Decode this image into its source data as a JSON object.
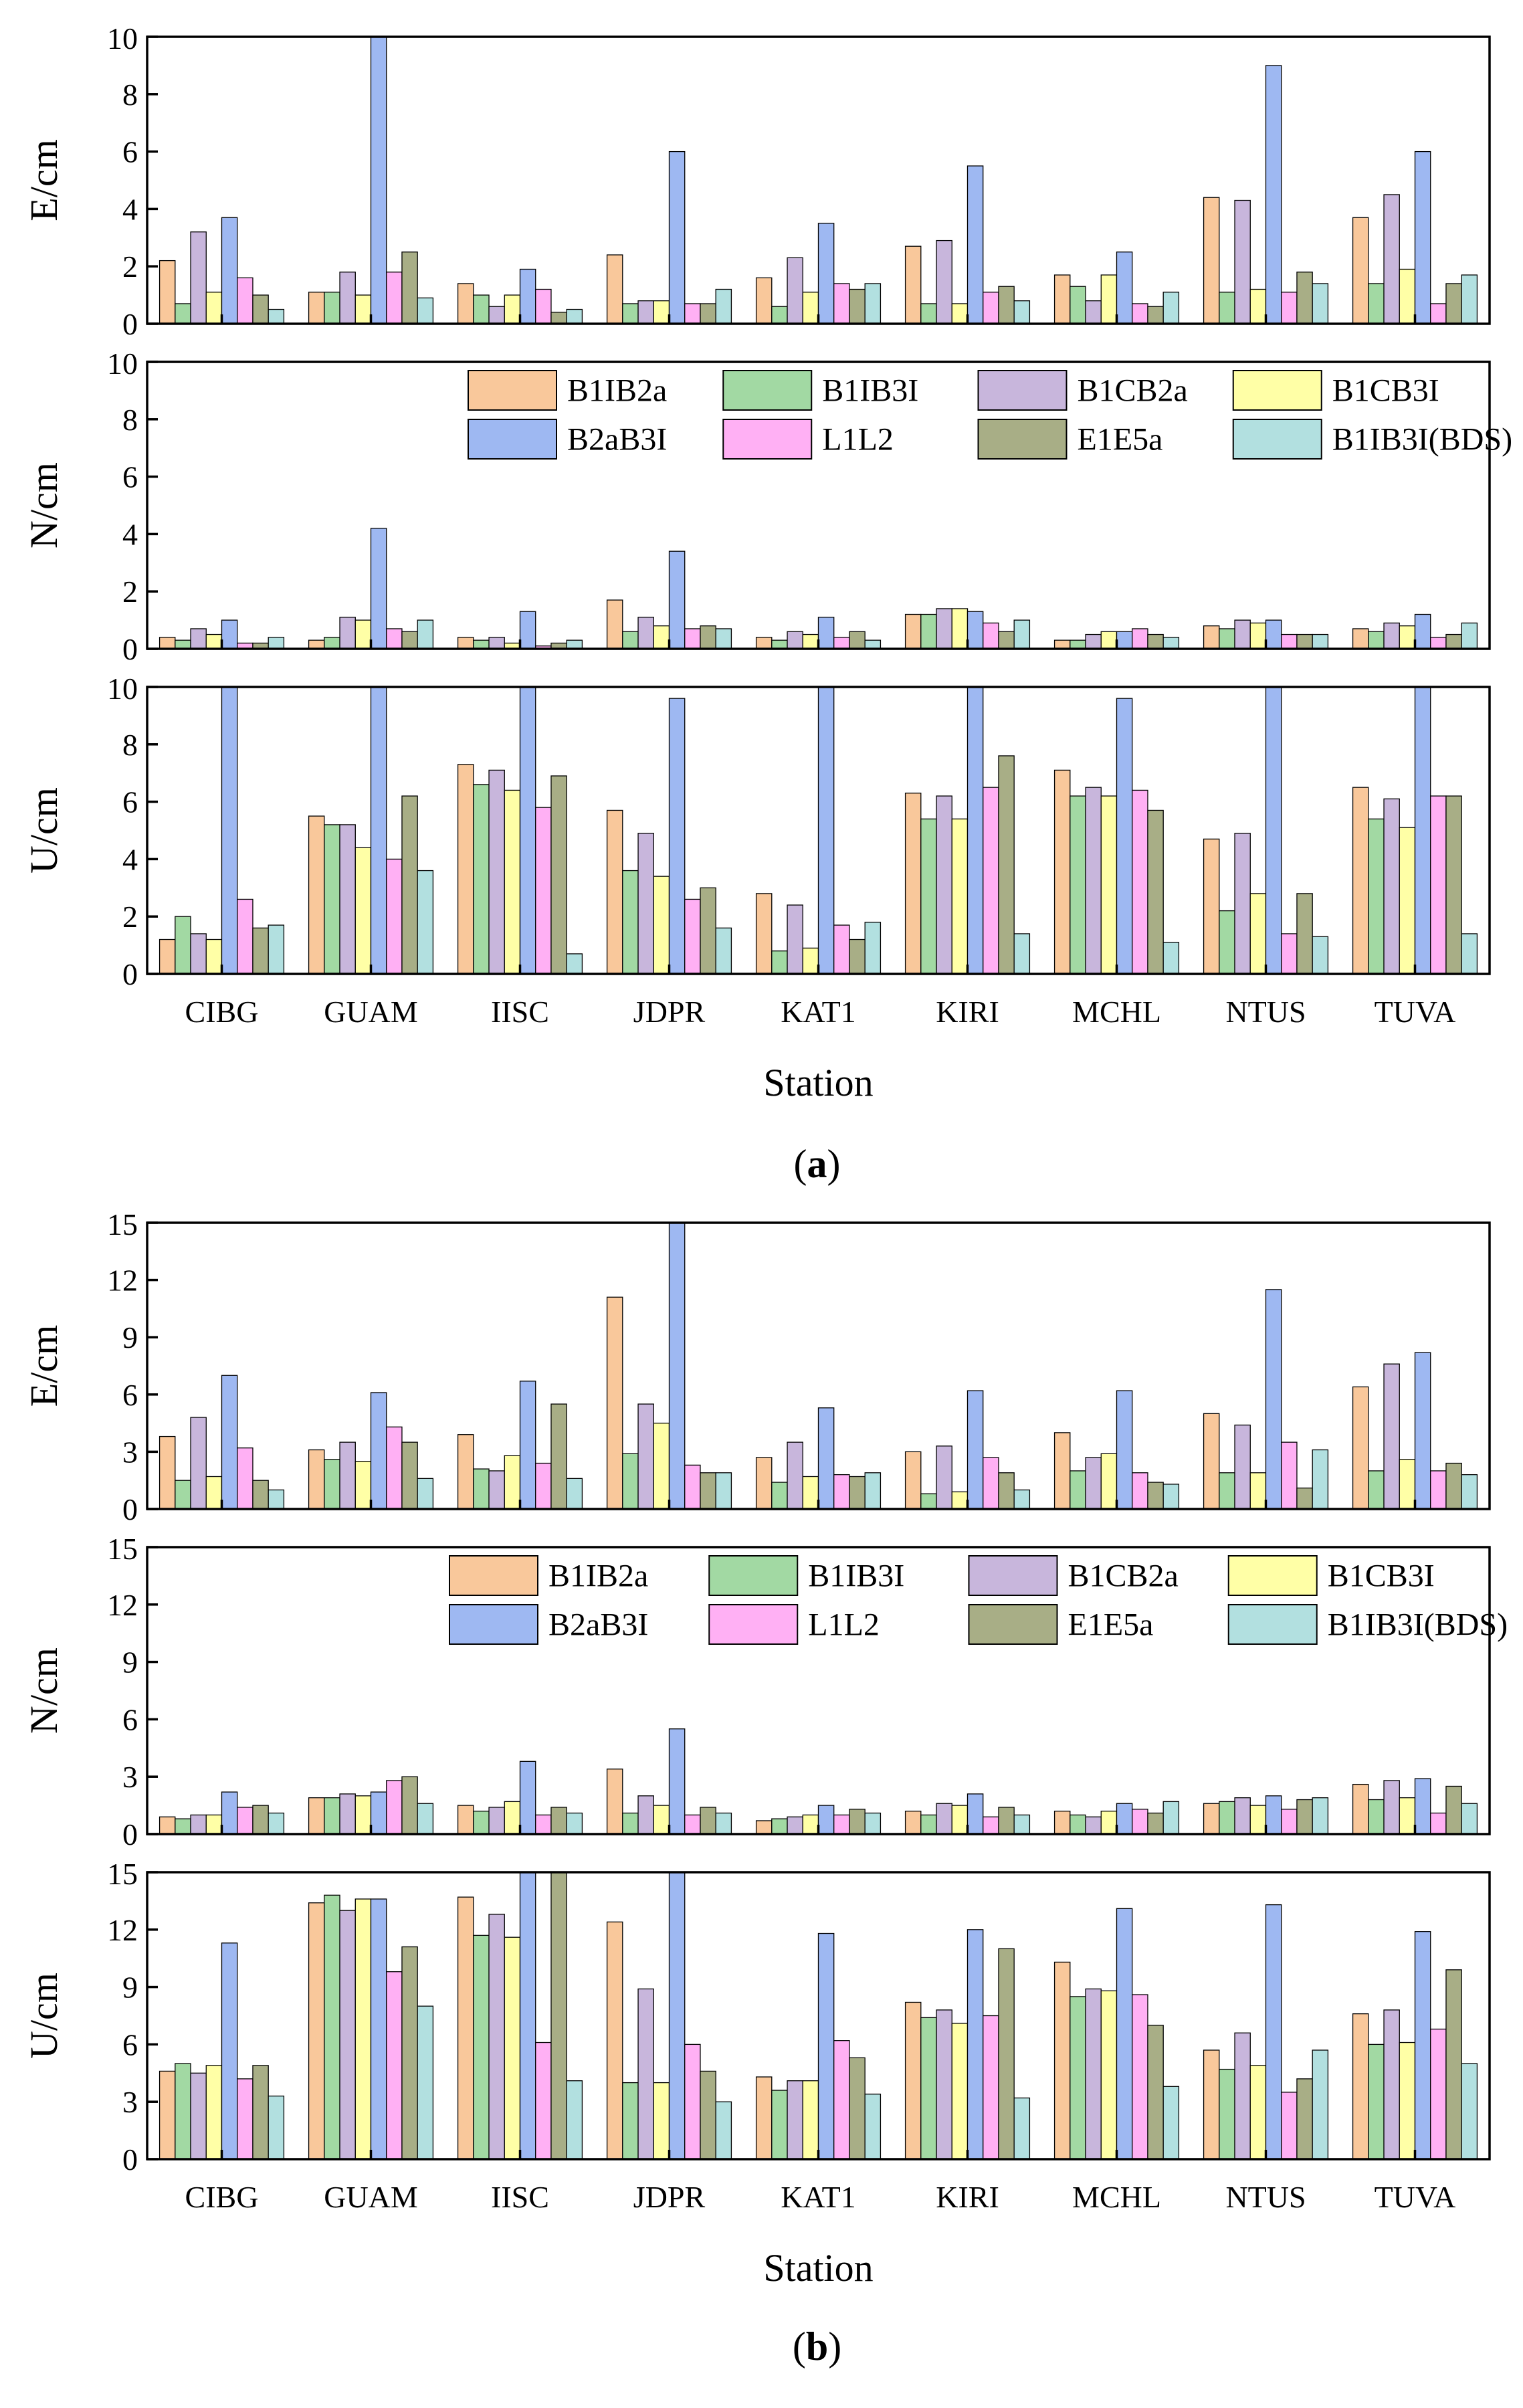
{
  "x_label": "Station",
  "legend_entries": [
    "B1IB2a",
    "B1IB3I",
    "B1CB2a",
    "B1CB3I",
    "B2aB3I",
    "L1L2",
    "E1E5a",
    "B1IB3I(BDS)"
  ],
  "series_colors": [
    "#F9C89B",
    "#A2D9A3",
    "#C8B6DC",
    "#FFFFA6",
    "#9EB8F2",
    "#FFB0F4",
    "#A8AE86",
    "#B2E0E0"
  ],
  "chart_data": [
    {
      "type": "bar",
      "title": "(a)",
      "caption": "a",
      "categories": [
        "CIBG",
        "GUAM",
        "IISC",
        "JDPR",
        "KAT1",
        "KIRI",
        "MCHL",
        "NTUS",
        "TUVA"
      ],
      "xlabel": "Station",
      "panels": [
        {
          "ylabel": "E/cm",
          "ylim": [
            0,
            10
          ],
          "yticks": [
            0,
            2,
            4,
            6,
            8,
            10
          ],
          "series": [
            {
              "name": "B1IB2a",
              "values": [
                2.2,
                1.1,
                1.4,
                2.4,
                1.6,
                2.7,
                1.7,
                4.4,
                3.7
              ]
            },
            {
              "name": "B1IB3I",
              "values": [
                0.7,
                1.1,
                1.0,
                0.7,
                0.6,
                0.7,
                1.3,
                1.1,
                1.4
              ]
            },
            {
              "name": "B1CB2a",
              "values": [
                3.2,
                1.8,
                0.6,
                0.8,
                2.3,
                2.9,
                0.8,
                4.3,
                4.5
              ]
            },
            {
              "name": "B1CB3I",
              "values": [
                1.1,
                1.0,
                1.0,
                0.8,
                1.1,
                0.7,
                1.7,
                1.2,
                1.9
              ]
            },
            {
              "name": "B2aB3I",
              "values": [
                3.7,
                10.0,
                1.9,
                6.0,
                3.5,
                5.5,
                2.5,
                9.0,
                6.0
              ]
            },
            {
              "name": "L1L2",
              "values": [
                1.6,
                1.8,
                1.2,
                0.7,
                1.4,
                1.1,
                0.7,
                1.1,
                0.7
              ]
            },
            {
              "name": "E1E5a",
              "values": [
                1.0,
                2.5,
                0.4,
                0.7,
                1.2,
                1.3,
                0.6,
                1.8,
                1.4
              ]
            },
            {
              "name": "B1IB3I(BDS)",
              "values": [
                0.5,
                0.9,
                0.5,
                1.2,
                1.4,
                0.8,
                1.1,
                1.4,
                1.7
              ]
            }
          ]
        },
        {
          "ylabel": "N/cm",
          "ylim": [
            0,
            10
          ],
          "yticks": [
            0,
            2,
            4,
            6,
            8,
            10
          ],
          "series": [
            {
              "name": "B1IB2a",
              "values": [
                0.4,
                0.3,
                0.4,
                1.7,
                0.4,
                1.2,
                0.3,
                0.8,
                0.7
              ]
            },
            {
              "name": "B1IB3I",
              "values": [
                0.3,
                0.4,
                0.3,
                0.6,
                0.3,
                1.2,
                0.3,
                0.7,
                0.6
              ]
            },
            {
              "name": "B1CB2a",
              "values": [
                0.7,
                1.1,
                0.4,
                1.1,
                0.6,
                1.4,
                0.5,
                1.0,
                0.9
              ]
            },
            {
              "name": "B1CB3I",
              "values": [
                0.5,
                1.0,
                0.2,
                0.8,
                0.5,
                1.4,
                0.6,
                0.9,
                0.8
              ]
            },
            {
              "name": "B2aB3I",
              "values": [
                1.0,
                4.2,
                1.3,
                3.4,
                1.1,
                1.3,
                0.6,
                1.0,
                1.2
              ]
            },
            {
              "name": "L1L2",
              "values": [
                0.2,
                0.7,
                0.1,
                0.7,
                0.4,
                0.9,
                0.7,
                0.5,
                0.4
              ]
            },
            {
              "name": "E1E5a",
              "values": [
                0.2,
                0.6,
                0.2,
                0.8,
                0.6,
                0.6,
                0.5,
                0.5,
                0.5
              ]
            },
            {
              "name": "B1IB3I(BDS)",
              "values": [
                0.4,
                1.0,
                0.3,
                0.7,
                0.3,
                1.0,
                0.4,
                0.5,
                0.9
              ]
            }
          ]
        },
        {
          "ylabel": "U/cm",
          "ylim": [
            0,
            10
          ],
          "yticks": [
            0,
            2,
            4,
            6,
            8,
            10
          ],
          "series": [
            {
              "name": "B1IB2a",
              "values": [
                1.2,
                5.5,
                7.3,
                5.7,
                2.8,
                6.3,
                7.1,
                4.7,
                6.5
              ]
            },
            {
              "name": "B1IB3I",
              "values": [
                2.0,
                5.2,
                6.6,
                3.6,
                0.8,
                5.4,
                6.2,
                2.2,
                5.4
              ]
            },
            {
              "name": "B1CB2a",
              "values": [
                1.4,
                5.2,
                7.1,
                4.9,
                2.4,
                6.2,
                6.5,
                4.9,
                6.1
              ]
            },
            {
              "name": "B1CB3I",
              "values": [
                1.2,
                4.4,
                6.4,
                3.4,
                0.9,
                5.4,
                6.2,
                2.8,
                5.1
              ]
            },
            {
              "name": "B2aB3I",
              "values": [
                10.0,
                10.0,
                10.0,
                9.6,
                10.0,
                10.0,
                9.6,
                10.0,
                10.0
              ]
            },
            {
              "name": "L1L2",
              "values": [
                2.6,
                4.0,
                5.8,
                2.6,
                1.7,
                6.5,
                6.4,
                1.4,
                6.2
              ]
            },
            {
              "name": "E1E5a",
              "values": [
                1.6,
                6.2,
                6.9,
                3.0,
                1.2,
                7.6,
                5.7,
                2.8,
                6.2
              ]
            },
            {
              "name": "B1IB3I(BDS)",
              "values": [
                1.7,
                3.6,
                0.7,
                1.6,
                1.8,
                1.4,
                1.1,
                1.3,
                1.4
              ]
            }
          ]
        }
      ]
    },
    {
      "type": "bar",
      "title": "(b)",
      "caption": "b",
      "categories": [
        "CIBG",
        "GUAM",
        "IISC",
        "JDPR",
        "KAT1",
        "KIRI",
        "MCHL",
        "NTUS",
        "TUVA"
      ],
      "xlabel": "Station",
      "panels": [
        {
          "ylabel": "E/cm",
          "ylim": [
            0,
            15
          ],
          "yticks": [
            0,
            3,
            6,
            9,
            12,
            15
          ],
          "series": [
            {
              "name": "B1IB2a",
              "values": [
                3.8,
                3.1,
                3.9,
                11.1,
                2.7,
                3.0,
                4.0,
                5.0,
                6.4
              ]
            },
            {
              "name": "B1IB3I",
              "values": [
                1.5,
                2.6,
                2.1,
                2.9,
                1.4,
                0.8,
                2.0,
                1.9,
                2.0
              ]
            },
            {
              "name": "B1CB2a",
              "values": [
                4.8,
                3.5,
                2.0,
                5.5,
                3.5,
                3.3,
                2.7,
                4.4,
                7.6
              ]
            },
            {
              "name": "B1CB3I",
              "values": [
                1.7,
                2.5,
                2.8,
                4.5,
                1.7,
                0.9,
                2.9,
                1.9,
                2.6
              ]
            },
            {
              "name": "B2aB3I",
              "values": [
                7.0,
                6.1,
                6.7,
                15.0,
                5.3,
                6.2,
                6.2,
                11.5,
                8.2
              ]
            },
            {
              "name": "L1L2",
              "values": [
                3.2,
                4.3,
                2.4,
                2.3,
                1.8,
                2.7,
                1.9,
                3.5,
                2.0
              ]
            },
            {
              "name": "E1E5a",
              "values": [
                1.5,
                3.5,
                5.5,
                1.9,
                1.7,
                1.9,
                1.4,
                1.1,
                2.4
              ]
            },
            {
              "name": "B1IB3I(BDS)",
              "values": [
                1.0,
                1.6,
                1.6,
                1.9,
                1.9,
                1.0,
                1.3,
                3.1,
                1.8
              ]
            }
          ]
        },
        {
          "ylabel": "N/cm",
          "ylim": [
            0,
            15
          ],
          "yticks": [
            0,
            3,
            6,
            9,
            12,
            15
          ],
          "series": [
            {
              "name": "B1IB2a",
              "values": [
                0.9,
                1.9,
                1.5,
                3.4,
                0.7,
                1.2,
                1.2,
                1.6,
                2.6
              ]
            },
            {
              "name": "B1IB3I",
              "values": [
                0.8,
                1.9,
                1.2,
                1.1,
                0.8,
                1.0,
                1.0,
                1.7,
                1.8
              ]
            },
            {
              "name": "B1CB2a",
              "values": [
                1.0,
                2.1,
                1.4,
                2.0,
                0.9,
                1.6,
                0.9,
                1.9,
                2.8
              ]
            },
            {
              "name": "B1CB3I",
              "values": [
                1.0,
                2.0,
                1.7,
                1.5,
                1.0,
                1.5,
                1.2,
                1.5,
                1.9
              ]
            },
            {
              "name": "B2aB3I",
              "values": [
                2.2,
                2.2,
                3.8,
                5.5,
                1.5,
                2.1,
                1.6,
                2.0,
                2.9
              ]
            },
            {
              "name": "L1L2",
              "values": [
                1.4,
                2.8,
                1.0,
                1.0,
                1.0,
                0.9,
                1.3,
                1.3,
                1.1
              ]
            },
            {
              "name": "E1E5a",
              "values": [
                1.5,
                3.0,
                1.4,
                1.4,
                1.3,
                1.4,
                1.1,
                1.8,
                2.5
              ]
            },
            {
              "name": "B1IB3I(BDS)",
              "values": [
                1.1,
                1.6,
                1.1,
                1.1,
                1.1,
                1.0,
                1.7,
                1.9,
                1.6
              ]
            }
          ]
        },
        {
          "ylabel": "U/cm",
          "ylim": [
            0,
            15
          ],
          "yticks": [
            0,
            3,
            6,
            9,
            12,
            15
          ],
          "series": [
            {
              "name": "B1IB2a",
              "values": [
                4.6,
                13.4,
                13.7,
                12.4,
                4.3,
                8.2,
                10.3,
                5.7,
                7.6
              ]
            },
            {
              "name": "B1IB3I",
              "values": [
                5.0,
                13.8,
                11.7,
                4.0,
                3.6,
                7.4,
                8.5,
                4.7,
                6.0
              ]
            },
            {
              "name": "B1CB2a",
              "values": [
                4.5,
                13.0,
                12.8,
                8.9,
                4.1,
                7.8,
                8.9,
                6.6,
                7.8
              ]
            },
            {
              "name": "B1CB3I",
              "values": [
                4.9,
                13.6,
                11.6,
                4.0,
                4.1,
                7.1,
                8.8,
                4.9,
                6.1
              ]
            },
            {
              "name": "B2aB3I",
              "values": [
                11.3,
                13.6,
                15.0,
                15.0,
                11.8,
                12.0,
                13.1,
                13.3,
                11.9
              ]
            },
            {
              "name": "L1L2",
              "values": [
                4.2,
                9.8,
                6.1,
                6.0,
                6.2,
                7.5,
                8.6,
                3.5,
                6.8
              ]
            },
            {
              "name": "E1E5a",
              "values": [
                4.9,
                11.1,
                15.0,
                4.6,
                5.3,
                11.0,
                7.0,
                4.2,
                9.9
              ]
            },
            {
              "name": "B1IB3I(BDS)",
              "values": [
                3.3,
                8.0,
                4.1,
                3.0,
                3.4,
                3.2,
                3.8,
                5.7,
                5.0
              ]
            }
          ]
        }
      ]
    }
  ]
}
